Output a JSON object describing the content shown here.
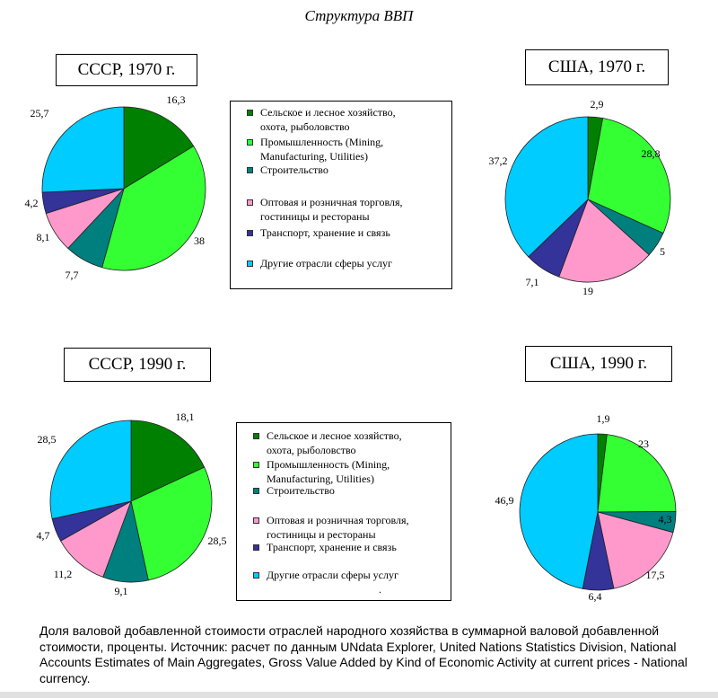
{
  "page_title": "Структура ВВП",
  "legend": [
    {
      "label": "Сельское  и лесное хозяйство,\nохота, рыболовство",
      "color": "#008000"
    },
    {
      "label": "Промышленность (Mining,\nManufacturing, Utilities)",
      "color": "#33ff33"
    },
    {
      "label": "Строительство",
      "color": "#007f7f"
    },
    {
      "label": "Оптовая и розничная торговля,\nгостиницы и рестораны",
      "color": "#ff99cc"
    },
    {
      "label": "Транспорт, хранение и связь",
      "color": "#333399"
    },
    {
      "label": "Другие отрасли сферы услуг",
      "color": "#00ccff"
    }
  ],
  "legend_trailing_mark": ".",
  "chart_data": [
    {
      "type": "pie",
      "title": "СССР, 1970 г.",
      "categories": [
        "Сельское  и лесное хозяйство, охота, рыболовство",
        "Промышленность (Mining, Manufacturing, Utilities)",
        "Строительство",
        "Оптовая и розничная торговля, гостиницы и рестораны",
        "Транспорт, хранение и связь",
        "Другие отрасли сферы услуг"
      ],
      "values": [
        16.3,
        38,
        7.7,
        8.1,
        4.2,
        25.7
      ],
      "labels": [
        "16,3",
        "38",
        "7,7",
        "8,1",
        "4,2",
        "25,7"
      ]
    },
    {
      "type": "pie",
      "title": "США, 1970 г.",
      "categories": [
        "Сельское  и лесное хозяйство, охота, рыболовство",
        "Промышленность (Mining, Manufacturing, Utilities)",
        "Строительство",
        "Оптовая и розничная торговля, гостиницы и рестораны",
        "Транспорт, хранение и связь",
        "Другие отрасли сферы услуг"
      ],
      "values": [
        2.9,
        28.8,
        5,
        19,
        7.1,
        37.2
      ],
      "labels": [
        "2,9",
        "28,8",
        "5",
        "19",
        "7,1",
        "37,2"
      ]
    },
    {
      "type": "pie",
      "title": "СССР, 1990 г.",
      "categories": [
        "Сельское  и лесное хозяйство, охота, рыболовство",
        "Промышленность (Mining, Manufacturing, Utilities)",
        "Строительство",
        "Оптовая и розничная торговля, гостиницы и рестораны",
        "Транспорт, хранение и связь",
        "Другие отрасли сферы услуг"
      ],
      "values": [
        18.1,
        28.5,
        9.1,
        11.2,
        4.7,
        28.5
      ],
      "labels": [
        "18,1",
        "28,5",
        "9,1",
        "11,2",
        "4,7",
        "28,5"
      ]
    },
    {
      "type": "pie",
      "title": "США, 1990 г.",
      "categories": [
        "Сельское  и лесное хозяйство, охота, рыболовство",
        "Промышленность (Mining, Manufacturing, Utilities)",
        "Строительство",
        "Оптовая и розничная торговля, гостиницы и рестораны",
        "Транспорт, хранение и связь",
        "Другие отрасли сферы услуг"
      ],
      "values": [
        1.9,
        23,
        4.3,
        17.5,
        6.4,
        46.9
      ],
      "labels": [
        "1,9",
        "23",
        "4,3",
        "17,5",
        "6,4",
        "46,9"
      ]
    }
  ],
  "caption": "Доля валовой добавленной стоимости отраслей народного хозяйства в суммарной валовой добавленной стоимости, проценты. Источник: расчет по данным UNdata Explorer, United Nations Statistics Division, National Accounts Estimates of Main Aggregates,  Gross Value Added by Kind of Economic Activity at current prices - National currency."
}
